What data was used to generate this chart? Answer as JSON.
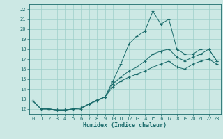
{
  "title": "",
  "xlabel": "Humidex (Indice chaleur)",
  "ylabel": "",
  "background_color": "#cce8e4",
  "grid_color": "#9ecfca",
  "line_color": "#1a6b6b",
  "xlim": [
    -0.5,
    23.5
  ],
  "ylim": [
    11.5,
    22.5
  ],
  "yticks": [
    12,
    13,
    14,
    15,
    16,
    17,
    18,
    19,
    20,
    21,
    22
  ],
  "xticks": [
    0,
    1,
    2,
    3,
    4,
    5,
    6,
    7,
    8,
    9,
    10,
    11,
    12,
    13,
    14,
    15,
    16,
    17,
    18,
    19,
    20,
    21,
    22,
    23
  ],
  "line1_x": [
    0,
    1,
    2,
    3,
    4,
    5,
    6,
    7,
    8,
    9,
    10,
    11,
    12,
    13,
    14,
    15,
    16,
    17,
    18,
    19,
    20,
    21,
    22,
    23
  ],
  "line1_y": [
    12.8,
    12.0,
    12.0,
    11.9,
    11.9,
    12.0,
    12.0,
    12.5,
    12.8,
    13.2,
    14.8,
    16.5,
    18.5,
    19.3,
    19.8,
    21.8,
    20.5,
    21.0,
    18.0,
    17.5,
    17.5,
    18.0,
    18.0,
    16.8
  ],
  "line2_x": [
    0,
    1,
    2,
    3,
    4,
    5,
    6,
    7,
    8,
    9,
    10,
    11,
    12,
    13,
    14,
    15,
    16,
    17,
    18,
    19,
    20,
    21,
    22,
    23
  ],
  "line2_y": [
    12.8,
    12.0,
    12.0,
    11.9,
    11.9,
    12.0,
    12.1,
    12.5,
    12.9,
    13.2,
    14.5,
    15.2,
    15.8,
    16.2,
    16.8,
    17.5,
    17.8,
    18.0,
    17.2,
    16.8,
    17.2,
    17.5,
    18.0,
    16.8
  ],
  "line3_x": [
    0,
    1,
    2,
    3,
    4,
    5,
    6,
    7,
    8,
    9,
    10,
    11,
    12,
    13,
    14,
    15,
    16,
    17,
    18,
    19,
    20,
    21,
    22,
    23
  ],
  "line3_y": [
    12.8,
    12.0,
    12.0,
    11.9,
    11.9,
    12.0,
    12.1,
    12.5,
    12.9,
    13.2,
    14.2,
    14.8,
    15.2,
    15.5,
    15.8,
    16.2,
    16.5,
    16.8,
    16.2,
    16.0,
    16.5,
    16.8,
    17.0,
    16.5
  ],
  "tick_fontsize": 5,
  "xlabel_fontsize": 6
}
